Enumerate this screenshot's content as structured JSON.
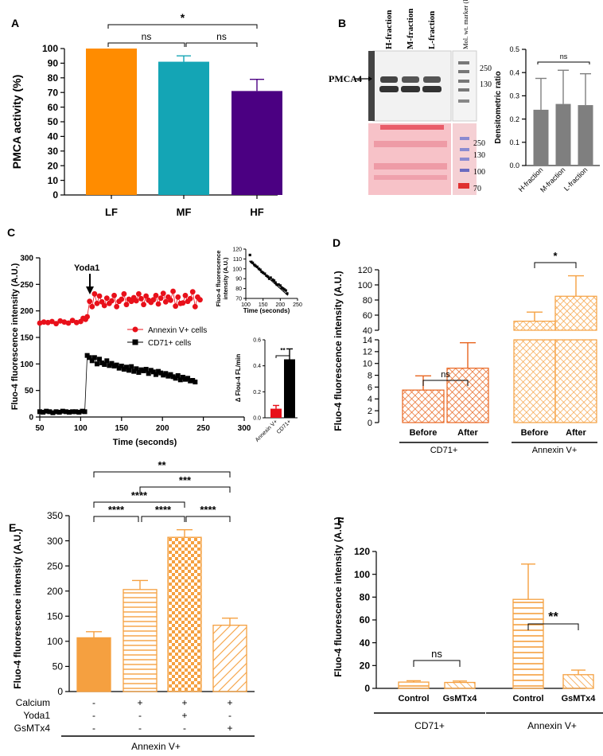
{
  "chart_data": [
    {
      "panel": "A",
      "type": "bar",
      "ylabel": "PMCA activity (%)",
      "categories": [
        "LF",
        "MF",
        "HF"
      ],
      "values": [
        100,
        91,
        71
      ],
      "errors": [
        0,
        4,
        8
      ],
      "colors": [
        "#ff8c00",
        "#14a5b5",
        "#4b0082"
      ],
      "ylim": [
        0,
        100
      ],
      "yticks": [
        "0",
        "10",
        "20",
        "30",
        "40",
        "50",
        "60",
        "70",
        "80",
        "90",
        "100"
      ],
      "significance": [
        "ns",
        "ns",
        "*"
      ]
    },
    {
      "panel": "B",
      "type": "bar",
      "blot_col_labels": [
        "H-fraction",
        "M-fraction",
        "L-fraction",
        "Mol. wt. marker (kDa)"
      ],
      "band_label": "PMCA4",
      "marker_top": [
        "250",
        "130"
      ],
      "marker_bottom": [
        "250",
        "130",
        "100",
        "70"
      ],
      "ylabel": "Densitometric ratio",
      "categories": [
        "H-fraction",
        "M-fraction",
        "L-fraction"
      ],
      "values": [
        0.24,
        0.265,
        0.26
      ],
      "errors": [
        0.135,
        0.145,
        0.135
      ],
      "ylim": [
        0,
        0.5
      ],
      "yticks": [
        "0.0",
        "0.1",
        "0.2",
        "0.3",
        "0.4",
        "0.5"
      ],
      "significance": "ns"
    },
    {
      "panel": "C",
      "type": "scatter",
      "xlabel": "Time (seconds)",
      "ylabel": "Fluo-4 fluorescence intensity (A.U.)",
      "xlim": [
        50,
        300
      ],
      "ylim": [
        0,
        300
      ],
      "xticks": [
        "50",
        "100",
        "150",
        "200",
        "250",
        "300"
      ],
      "yticks": [
        "0",
        "50",
        "100",
        "150",
        "200",
        "250",
        "300"
      ],
      "annotation": "Yoda1",
      "legend": [
        "Annexin V+ cells",
        "CD71+ cells"
      ],
      "series": [
        {
          "name": "Annexin V+ cells",
          "color": "#e8101a",
          "x": [
            50,
            55,
            60,
            65,
            70,
            75,
            80,
            85,
            90,
            95,
            100,
            103,
            106,
            108,
            111,
            114,
            117,
            120,
            123,
            126,
            129,
            132,
            135,
            138,
            141,
            144,
            147,
            150,
            153,
            156,
            159,
            162,
            165,
            168,
            171,
            174,
            177,
            180,
            183,
            186,
            189,
            192,
            195,
            198,
            201,
            204,
            207,
            210,
            213,
            216,
            219,
            222,
            225,
            228,
            231,
            234,
            237,
            240,
            243,
            246
          ],
          "y": [
            177,
            179,
            178,
            180,
            176,
            181,
            179,
            177,
            182,
            178,
            180,
            186,
            184,
            189,
            218,
            208,
            232,
            214,
            228,
            217,
            210,
            224,
            214,
            219,
            229,
            208,
            218,
            222,
            232,
            212,
            222,
            218,
            225,
            219,
            232,
            223,
            212,
            228,
            220,
            216,
            221,
            229,
            213,
            224,
            233,
            217,
            226,
            220,
            237,
            209,
            226,
            214,
            215,
            229,
            218,
            223,
            236,
            208,
            226,
            221
          ]
        },
        {
          "name": "CD71+ cells",
          "color": "#000000",
          "x": [
            50,
            54,
            58,
            62,
            66,
            70,
            74,
            78,
            82,
            86,
            90,
            94,
            98,
            102,
            105,
            108,
            111,
            114,
            117,
            120,
            123,
            126,
            129,
            132,
            135,
            138,
            141,
            144,
            147,
            150,
            153,
            156,
            159,
            162,
            165,
            168,
            171,
            174,
            177,
            180,
            183,
            186,
            189,
            192,
            195,
            198,
            201,
            204,
            207,
            210,
            213,
            216,
            219,
            222,
            225,
            228,
            231,
            234,
            237,
            240
          ],
          "y": [
            10,
            9,
            11,
            10,
            8,
            10,
            9,
            11,
            10,
            9,
            10,
            10,
            9,
            11,
            10,
            116,
            112,
            106,
            112,
            100,
            109,
            102,
            99,
            106,
            97,
            101,
            96,
            98,
            92,
            96,
            90,
            94,
            88,
            95,
            86,
            91,
            84,
            89,
            87,
            90,
            82,
            88,
            85,
            80,
            86,
            83,
            79,
            82,
            77,
            80,
            76,
            73,
            78,
            70,
            75,
            71,
            73,
            68,
            69,
            66
          ]
        }
      ],
      "inset_fit": {
        "xlabel": "Time (seconds)",
        "ylabel": "Fluo-4 fluorescence intensity (A.U.)",
        "xlim": [
          100,
          250
        ],
        "ylim": [
          70,
          120
        ],
        "xticks": [
          "100",
          "150",
          "200",
          "250"
        ],
        "yticks": [
          "70",
          "80",
          "90",
          "100",
          "110",
          "120"
        ],
        "x": [
          112,
          116,
          120,
          125,
          128,
          133,
          138,
          142,
          146,
          150,
          155,
          160,
          164,
          168,
          172,
          178,
          182,
          186,
          190,
          195,
          200,
          204,
          208,
          212,
          216,
          220
        ],
        "y": [
          114,
          107,
          106,
          104,
          103,
          102,
          100,
          99,
          97,
          96,
          95,
          93,
          92,
          90,
          91,
          89,
          88,
          86,
          84,
          84,
          83,
          81,
          80,
          79,
          78,
          75
        ],
        "fit": [
          [
            110,
            108
          ],
          [
            222,
            73
          ]
        ]
      },
      "inset_bar": {
        "ylabel": "Δ Flou-4 FL/min",
        "categories": [
          "Annexin V+",
          "CD71+"
        ],
        "values": [
          0.07,
          0.45
        ],
        "errors": [
          0.025,
          0.08
        ],
        "colors": [
          "#e8101a",
          "#000000"
        ],
        "ylim": [
          0,
          0.6
        ],
        "yticks": [
          "0.0",
          "0.2",
          "0.4",
          "0.6"
        ],
        "significance": "**"
      }
    },
    {
      "panel": "D",
      "type": "bar",
      "ylabel": "Fluo-4 fluorescence intensity (A.U.)",
      "categories": [
        "Before",
        "After",
        "Before",
        "After"
      ],
      "groups": [
        "CD71+",
        "Annexin V+"
      ],
      "values": [
        5.5,
        9.2,
        52,
        85
      ],
      "errors": [
        2.4,
        4.3,
        12,
        27
      ],
      "ylim_lower": [
        0,
        14
      ],
      "ylim_upper": [
        40,
        120
      ],
      "yticks_lower": [
        "0",
        "2",
        "4",
        "6",
        "8",
        "10",
        "12",
        "14"
      ],
      "yticks_upper": [
        "40",
        "60",
        "80",
        "100",
        "120"
      ],
      "significance": [
        "ns",
        "*"
      ]
    },
    {
      "panel": "E",
      "type": "bar",
      "ylabel": "Fluo-4 fluorescence intensity (A.U.)",
      "values": [
        107,
        203,
        307,
        132
      ],
      "errors": [
        12,
        18,
        15,
        14
      ],
      "ylim": [
        0,
        350
      ],
      "yticks": [
        "0",
        "50",
        "100",
        "150",
        "200",
        "250",
        "300",
        "350"
      ],
      "row_labels": [
        "Calcium",
        "Yoda1",
        "GsMTx4"
      ],
      "conditions": [
        [
          "-",
          "-",
          "-"
        ],
        [
          "+",
          "-",
          "-"
        ],
        [
          "+",
          "+",
          "-"
        ],
        [
          "+",
          "-",
          "+"
        ]
      ],
      "group": "Annexin V+",
      "significance": [
        "**",
        "***",
        "****",
        "****",
        "****",
        "****"
      ]
    },
    {
      "panel": "F",
      "type": "bar",
      "ylabel": "Fluo-4 fluorescence intensity (A.U.)",
      "categories": [
        "Control",
        "GsMTx4",
        "Control",
        "GsMTx4"
      ],
      "groups": [
        "CD71+",
        "Annexin V+"
      ],
      "values": [
        5.5,
        5.2,
        78,
        12
      ],
      "errors": [
        1.2,
        1.2,
        31,
        4
      ],
      "ylim": [
        0,
        120
      ],
      "yticks": [
        "0",
        "20",
        "40",
        "60",
        "80",
        "100",
        "120"
      ],
      "significance": [
        "ns",
        "**"
      ]
    }
  ]
}
